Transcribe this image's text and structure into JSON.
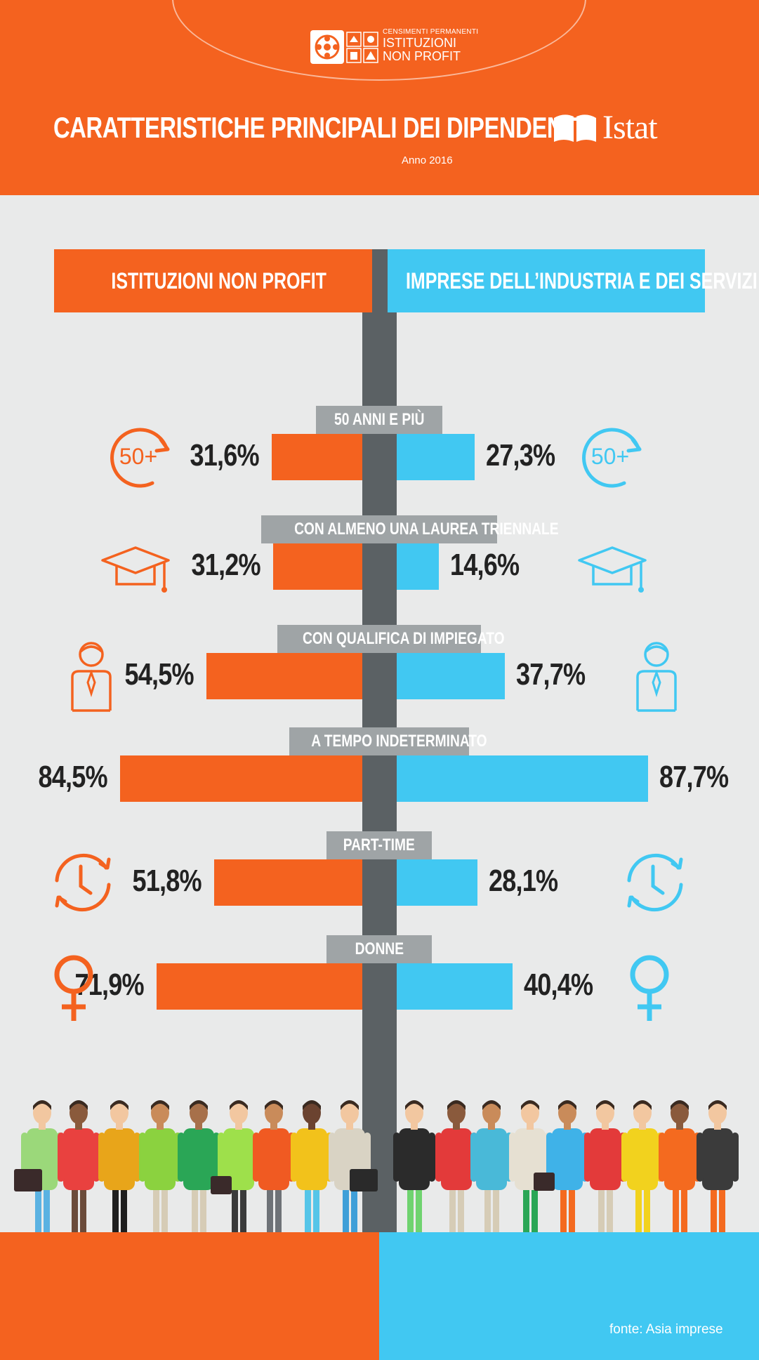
{
  "header": {
    "logo_line1": "CENSIMENTI PERMANENTI",
    "logo_line2": "ISTITUZIONI",
    "logo_line3": "NON PROFIT",
    "title": "CARATTERISTICHE PRINCIPALI DEI DIPENDENTI",
    "subtitle": "Anno 2016",
    "brand": "Istat"
  },
  "colors": {
    "nonprofit": "#f4621f",
    "imprese": "#41c8f2",
    "axis": "#5b6164",
    "label_bg": "#9fa4a6"
  },
  "chart_data": {
    "type": "bar",
    "orientation": "horizontal-butterfly",
    "series": [
      {
        "name": "ISTITUZIONI NON PROFIT",
        "values": [
          31.6,
          31.2,
          54.5,
          84.5,
          51.8,
          71.9
        ]
      },
      {
        "name": "IMPRESE DELL’INDUSTRIA E DEI SERVIZI",
        "values": [
          27.3,
          14.6,
          37.7,
          87.7,
          28.1,
          40.4
        ]
      }
    ],
    "categories": [
      "50 ANNI E PIÙ",
      "CON ALMENO UNA LAUREA TRIENNALE",
      "CON QUALIFICA DI IMPIEGATO",
      "A TEMPO INDETERMINATO",
      "PART-TIME",
      "DONNE"
    ],
    "value_labels_left": [
      "31,6%",
      "31,2%",
      "54,5%",
      "84,5%",
      "51,8%",
      "71,9%"
    ],
    "value_labels_right": [
      "27,3%",
      "14,6%",
      "37,7%",
      "87,7%",
      "28,1%",
      "40,4%"
    ],
    "icons": [
      "fifty-plus-icon",
      "graduation-cap-icon",
      "employee-icon",
      "",
      "clock-cycle-icon",
      "female-symbol-icon"
    ],
    "icon_text": "50+",
    "xlim": [
      0,
      100
    ]
  },
  "footer": {
    "source": "fonte: Asia imprese"
  }
}
